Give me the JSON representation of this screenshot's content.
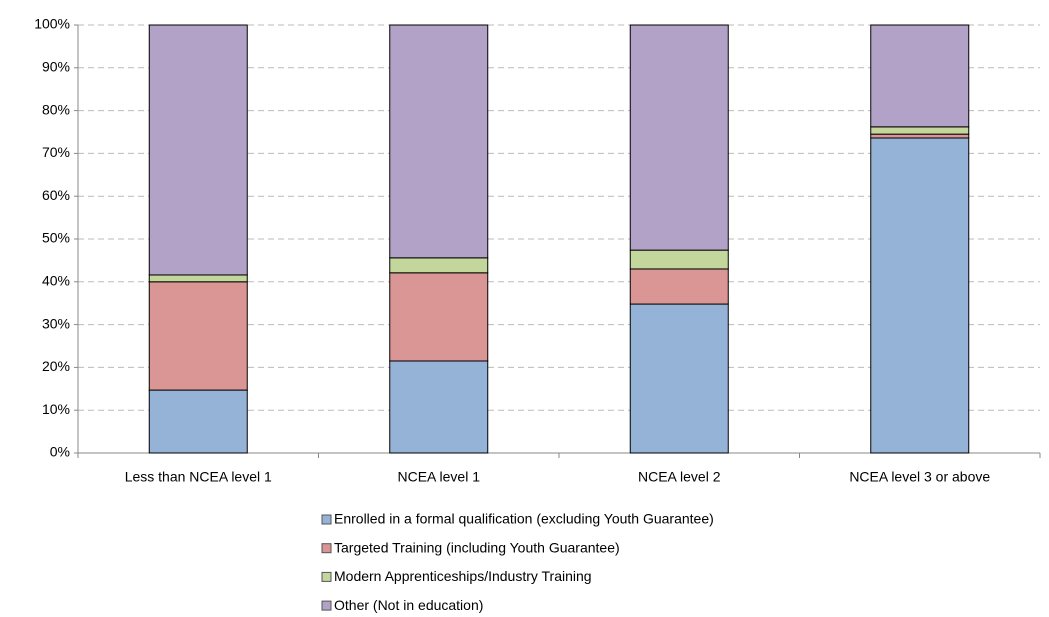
{
  "chart_data": {
    "type": "stacked_bar",
    "categories": [
      "Less than NCEA level 1",
      "NCEA level 1",
      "NCEA level 2",
      "NCEA level 3 or above"
    ],
    "series": [
      {
        "name": "Enrolled in a formal qualification (excluding Youth Guarantee)",
        "color": "#95b3d7",
        "values": [
          14.7,
          21.5,
          34.8,
          73.6
        ]
      },
      {
        "name": "Targeted Training (including Youth Guarantee)",
        "color": "#d99694",
        "values": [
          25.3,
          20.6,
          8.2,
          0.9
        ]
      },
      {
        "name": "Modern Apprenticeships/Industry Training",
        "color": "#c3d69b",
        "values": [
          1.6,
          3.5,
          4.4,
          1.7
        ]
      },
      {
        "name": "Other (Not in education)",
        "color": "#b3a2c7",
        "values": [
          58.4,
          54.4,
          52.6,
          23.8
        ]
      }
    ],
    "ylim": [
      0,
      100
    ],
    "yticks": [
      {
        "value": 0,
        "label": "0%"
      },
      {
        "value": 10,
        "label": "10%"
      },
      {
        "value": 20,
        "label": "20%"
      },
      {
        "value": 30,
        "label": "30%"
      },
      {
        "value": 40,
        "label": "40%"
      },
      {
        "value": 50,
        "label": "50%"
      },
      {
        "value": 60,
        "label": "60%"
      },
      {
        "value": 70,
        "label": "70%"
      },
      {
        "value": 80,
        "label": "80%"
      },
      {
        "value": 90,
        "label": "90%"
      },
      {
        "value": 100,
        "label": "100%"
      }
    ],
    "grid": true,
    "legend": "bottom"
  }
}
